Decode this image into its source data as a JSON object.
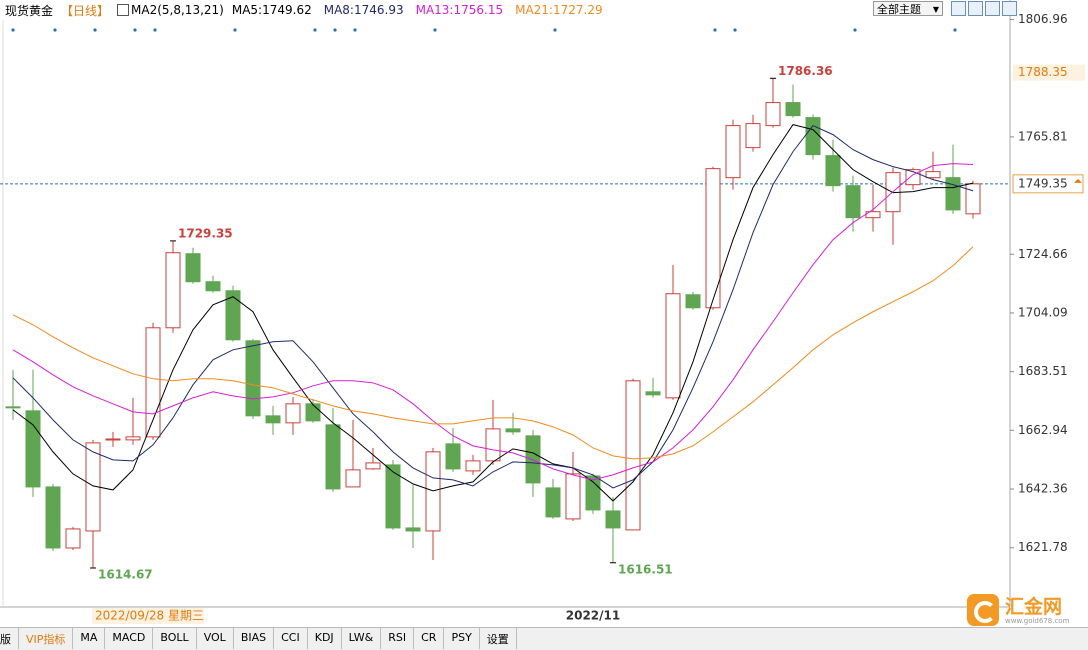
{
  "header": {
    "symbol": "现货黄金",
    "period": "【日线】",
    "indicator": "MA2(5,8,13,21)"
  },
  "theme_menu": "全部主题",
  "cursor_date": "2022/09/28 星期三",
  "logo": {
    "name": "汇金网",
    "url": "www.gold678.com"
  },
  "toolbar": {
    "tabs": [
      "版",
      "VIP指标",
      "MA",
      "MACD",
      "BOLL",
      "VOL",
      "BIAS",
      "CCI",
      "KDJ",
      "LW&",
      "RSI",
      "CR",
      "PSY",
      "设置"
    ]
  },
  "chart_data": {
    "type": "candlestick",
    "categories": [
      null,
      null,
      null,
      null,
      null,
      null,
      null,
      null,
      null,
      null,
      null,
      null,
      null,
      null,
      null,
      null,
      null,
      null,
      null,
      null,
      null,
      null,
      null,
      null,
      null,
      null,
      null,
      null,
      null,
      "2022/11",
      null,
      null,
      null,
      null,
      null,
      null,
      null,
      null,
      null,
      null,
      null,
      null,
      null,
      null,
      null,
      null,
      null,
      null,
      null
    ],
    "open": [
      1671.17,
      1669.77,
      1643.1,
      1621.7,
      1627.66,
      1659.6,
      1659.59,
      1660.65,
      1698.89,
      1724.86,
      1715.03,
      1711.87,
      1694.33,
      1668.02,
      1665.56,
      1672.23,
      1664.86,
      1643.1,
      1649.42,
      1650.82,
      1628.72,
      1627.66,
      1658.19,
      1648.72,
      1652.23,
      1663.45,
      1661.0,
      1642.75,
      1631.88,
      1646.96,
      1634.68,
      1628.02,
      1676.44,
      1674.33,
      1710.47,
      1705.91,
      1751.52,
      1762.05,
      1769.77,
      1777.84,
      1772.58,
      1759.24,
      1748.72,
      1737.49,
      1739.59,
      1749.07,
      1751.52,
      1751.52,
      1738.84
    ],
    "high": [
      1684.16,
      1684.16,
      1644.16,
      1629.07,
      1659.59,
      1662.4,
      1674.3,
      1700.65,
      1729.35,
      1726.96,
      1717.14,
      1713.63,
      1695.03,
      1671.52,
      1674.68,
      1673.98,
      1670.82,
      1666.61,
      1656.79,
      1652.58,
      1643.8,
      1656.79,
      1663.81,
      1654.33,
      1673.63,
      1669.07,
      1663.11,
      1645.91,
      1655.4,
      1647.66,
      1639.59,
      1681.0,
      1681.35,
      1720.96,
      1711.52,
      1755.38,
      1771.87,
      1773.63,
      1786.36,
      1784.16,
      1773.63,
      1764.86,
      1752.23,
      1749.07,
      1755.03,
      1755.03,
      1760.65,
      1763.1,
      1750.5
    ],
    "low": [
      1666.61,
      1639.59,
      1620.65,
      1621.0,
      1614.67,
      1657.14,
      1657.84,
      1659.59,
      1697.14,
      1714.33,
      1711.17,
      1693.98,
      1666.96,
      1661.35,
      1661.35,
      1665.56,
      1641.35,
      1643.1,
      1649.07,
      1628.02,
      1621.7,
      1617.49,
      1648.37,
      1647.31,
      1650.82,
      1661.35,
      1639.59,
      1631.88,
      1631.17,
      1633.63,
      1616.51,
      1628.02,
      1674.33,
      1673.63,
      1705.21,
      1705.21,
      1747.31,
      1760.65,
      1769.07,
      1772.58,
      1757.84,
      1746.61,
      1732.58,
      1732.58,
      1728.02,
      1747.31,
      1750.82,
      1738.84,
      1737.21
    ],
    "close": [
      1670.82,
      1643.1,
      1621.7,
      1628.37,
      1658.54,
      1659.9,
      1660.65,
      1698.89,
      1725.21,
      1715.03,
      1711.87,
      1694.68,
      1668.02,
      1665.56,
      1672.23,
      1666.26,
      1642.4,
      1649.07,
      1651.52,
      1628.72,
      1627.66,
      1655.4,
      1649.42,
      1652.23,
      1663.45,
      1662.4,
      1644.51,
      1632.58,
      1647.66,
      1635.03,
      1628.72,
      1680.3,
      1675.38,
      1710.82,
      1705.91,
      1754.68,
      1769.77,
      1770.47,
      1777.84,
      1773.28,
      1759.59,
      1748.72,
      1737.49,
      1739.59,
      1753.28,
      1754.33,
      1753.63,
      1740.21,
      1749.35
    ],
    "high_labels": [
      null,
      null,
      null,
      null,
      null,
      null,
      null,
      null,
      "1729.35",
      null,
      null,
      null,
      null,
      null,
      null,
      null,
      null,
      null,
      null,
      null,
      null,
      null,
      null,
      null,
      null,
      null,
      null,
      null,
      null,
      null,
      null,
      null,
      null,
      null,
      null,
      null,
      null,
      null,
      "1786.36",
      null,
      null,
      null,
      null,
      null,
      null,
      null,
      null,
      null,
      null
    ],
    "low_labels": [
      null,
      null,
      null,
      null,
      "1614.67",
      null,
      null,
      null,
      null,
      null,
      null,
      null,
      null,
      null,
      null,
      null,
      null,
      null,
      null,
      null,
      null,
      null,
      null,
      null,
      null,
      null,
      null,
      null,
      null,
      null,
      "1616.51",
      null,
      null,
      null,
      null,
      null,
      null,
      null,
      null,
      null,
      null,
      null,
      null,
      null,
      null,
      null,
      null,
      null,
      null
    ],
    "up_color": "#c9413a",
    "down_color": "#5fa552",
    "ma_lines": [
      {
        "name": "MA5:1749.62",
        "color": "#000000",
        "values": [
          1670.12,
          1664.86,
          1655.38,
          1647.66,
          1643.45,
          1642.05,
          1649.07,
          1666.61,
          1684.16,
          1698.19,
          1706.96,
          1709.77,
          1704.51,
          1691.17,
          1681.35,
          1671.88,
          1665.56,
          1660.3,
          1654.33,
          1648.37,
          1644.16,
          1641.7,
          1643.45,
          1644.86,
          1651.88,
          1656.44,
          1655.03,
          1651.17,
          1649.77,
          1644.86,
          1638.19,
          1644.86,
          1654.33,
          1669.07,
          1686.96,
          1708.72,
          1729.77,
          1748.02,
          1759.59,
          1770.12,
          1768.37,
          1761.35,
          1754.33,
          1750.12,
          1746.26,
          1746.61,
          1748.02,
          1748.02,
          1749.62
        ]
      },
      {
        "name": "MA8:1746.93",
        "color": "#1f2a6b",
        "values": [
          1681.35,
          1674.33,
          1666.61,
          1659.59,
          1655.38,
          1652.58,
          1652.23,
          1657.84,
          1667.31,
          1678.89,
          1687.66,
          1691.17,
          1692.58,
          1693.98,
          1694.33,
          1686.96,
          1677.84,
          1668.72,
          1662.4,
          1655.38,
          1649.77,
          1646.26,
          1645.56,
          1643.45,
          1648.37,
          1651.88,
          1651.52,
          1650.82,
          1649.77,
          1647.31,
          1642.75,
          1645.56,
          1651.88,
          1663.1,
          1677.84,
          1693.98,
          1712.23,
          1732.23,
          1749.07,
          1760.65,
          1769.77,
          1766.61,
          1761.35,
          1757.84,
          1755.38,
          1753.63,
          1750.82,
          1749.07,
          1746.93
        ]
      },
      {
        "name": "MA13:1756.15",
        "color": "#d61fd6",
        "values": [
          1691.17,
          1686.96,
          1682.4,
          1678.19,
          1675.03,
          1672.23,
          1669.42,
          1668.72,
          1671.52,
          1674.33,
          1676.44,
          1675.03,
          1673.98,
          1674.68,
          1676.09,
          1678.54,
          1680.3,
          1680.3,
          1679.59,
          1677.14,
          1672.23,
          1666.26,
          1661.0,
          1657.49,
          1656.09,
          1655.03,
          1652.58,
          1649.42,
          1647.31,
          1645.56,
          1647.31,
          1649.77,
          1651.88,
          1656.79,
          1663.1,
          1671.17,
          1680.65,
          1691.17,
          1701.0,
          1711.17,
          1721.0,
          1729.77,
          1735.73,
          1740.3,
          1746.61,
          1752.58,
          1755.73,
          1756.44,
          1756.15
        ]
      },
      {
        "name": "MA21:1727.29",
        "color": "#f08a1c",
        "values": [
          1703.45,
          1699.95,
          1695.73,
          1691.88,
          1688.37,
          1685.56,
          1682.75,
          1681.0,
          1680.3,
          1681.0,
          1681.0,
          1680.3,
          1678.89,
          1677.84,
          1675.73,
          1673.63,
          1671.52,
          1669.77,
          1668.72,
          1667.31,
          1666.26,
          1665.21,
          1665.21,
          1666.26,
          1667.31,
          1667.31,
          1666.26,
          1664.16,
          1661.35,
          1656.79,
          1653.98,
          1652.93,
          1653.28,
          1654.68,
          1657.49,
          1662.4,
          1667.66,
          1672.93,
          1678.89,
          1684.86,
          1691.17,
          1696.44,
          1700.65,
          1704.51,
          1708.02,
          1711.52,
          1715.38,
          1720.65,
          1727.29
        ]
      }
    ],
    "ylim": [
      1601,
      1811
    ],
    "yticks": [
      1806.96,
      1765.81,
      1724.66,
      1704.09,
      1683.51,
      1662.94,
      1642.36,
      1621.78
    ],
    "grid": false,
    "price_line": 1749.35,
    "marker_price": 1788.35
  }
}
